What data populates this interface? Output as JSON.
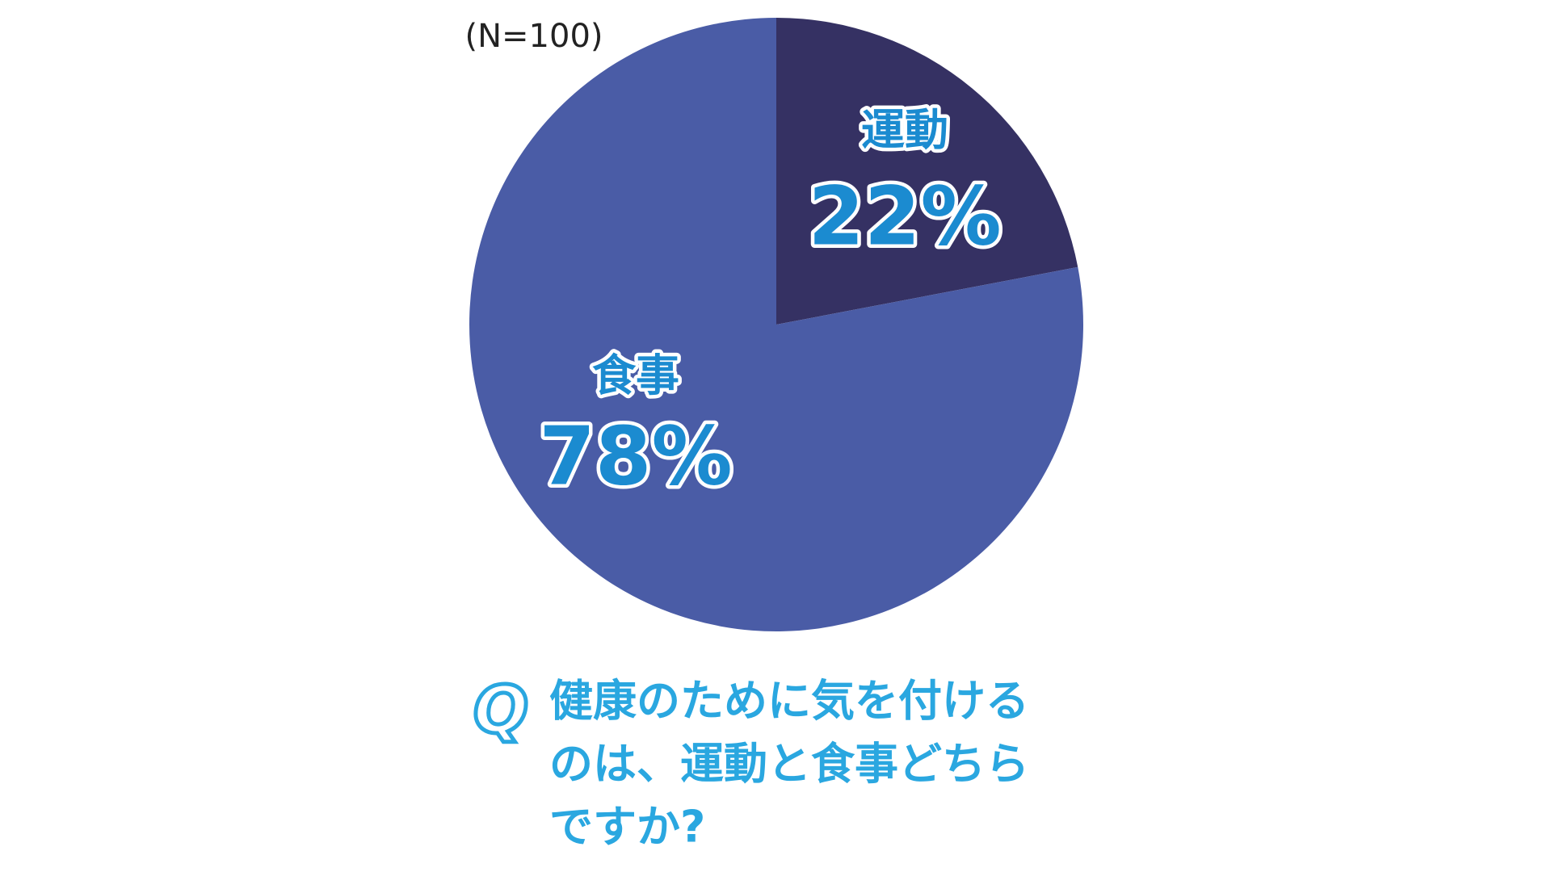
{
  "chart_data": {
    "type": "pie",
    "subtitle": "(N=100)",
    "categories": [
      "運動",
      "食事"
    ],
    "values": [
      22,
      78
    ],
    "value_labels": [
      "22%",
      "78%"
    ],
    "colors": [
      "#353163",
      "#4a5ca6"
    ],
    "question_label": "Q",
    "question_lines": [
      "健康のために気を付ける",
      "のは、運動と食事どちら",
      "ですか?"
    ]
  }
}
